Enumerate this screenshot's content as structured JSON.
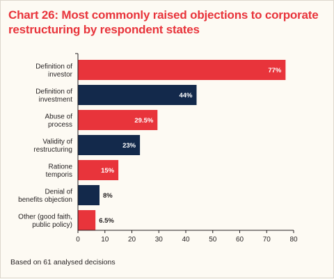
{
  "chart_data": {
    "type": "bar",
    "orientation": "horizontal",
    "title": "Chart 26: Most commonly raised objections to corporate restructuring by respondent states",
    "categories": [
      "Definition of\ninvestor",
      "Definition of\ninvestment",
      "Abuse of\nprocess",
      "Validity of\nrestructuring",
      "Ratione\ntemporis",
      "Denial of\nbenefits objection",
      "Other (good faith,\npublic policy)"
    ],
    "values": [
      77,
      44,
      29.5,
      23,
      15,
      8,
      6.5
    ],
    "value_labels": [
      "77%",
      "44%",
      "29.5%",
      "23%",
      "15%",
      "8%",
      "6.5%"
    ],
    "bar_colors": [
      "#e8343b",
      "#13294b",
      "#e8343b",
      "#13294b",
      "#e8343b",
      "#13294b",
      "#e8343b"
    ],
    "xlim": [
      0,
      80
    ],
    "xticks": [
      0,
      10,
      20,
      30,
      40,
      50,
      60,
      70,
      80
    ],
    "xlabel": "",
    "ylabel": "",
    "grid": false,
    "title_color": "#e8343b",
    "footnote": "Based on 61 analysed decisions"
  }
}
